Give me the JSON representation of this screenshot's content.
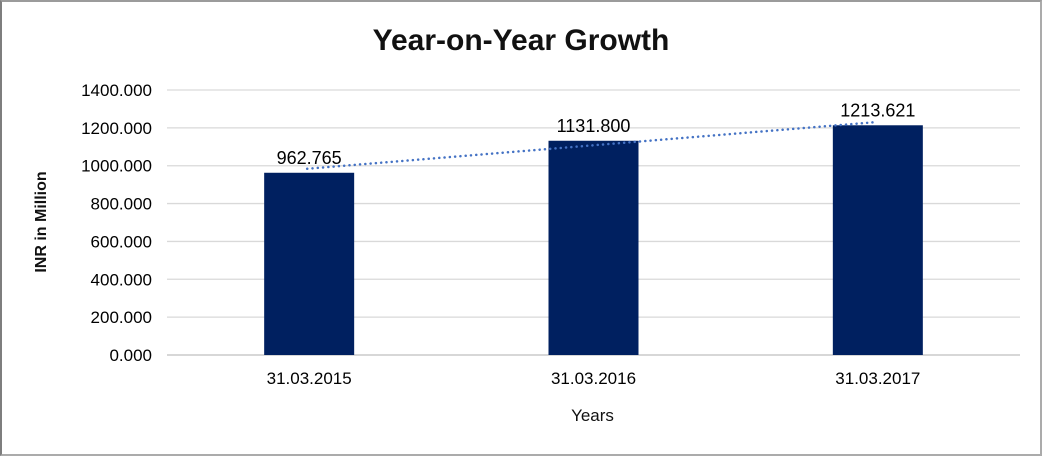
{
  "chart": {
    "title": "Year-on-Year Growth",
    "y_axis_title": "INR in Million",
    "x_axis_title": "Years"
  },
  "chart_data": {
    "type": "bar",
    "title": "Year-on-Year Growth",
    "xlabel": "Years",
    "ylabel": "INR in Million",
    "categories": [
      "31.03.2015",
      "31.03.2016",
      "31.03.2017"
    ],
    "values": [
      962.765,
      1131.8,
      1213.621
    ],
    "value_labels": [
      "962.765",
      "1131.800",
      "1213.621"
    ],
    "y_ticks": [
      "0.000",
      "200.000",
      "400.000",
      "600.000",
      "800.000",
      "1000.000",
      "1200.000",
      "1400.000"
    ],
    "y_tick_step": 200,
    "ylim": [
      0,
      1400
    ],
    "grid": "horizontal-only",
    "legend": "none",
    "trendline": {
      "type": "linear",
      "style": "dotted"
    },
    "colors": {
      "bar": "#002060",
      "trendline": "#4472c4",
      "gridline": "#d9d9d9",
      "axis_line": "#bfbfbf",
      "text": "#000000"
    }
  }
}
